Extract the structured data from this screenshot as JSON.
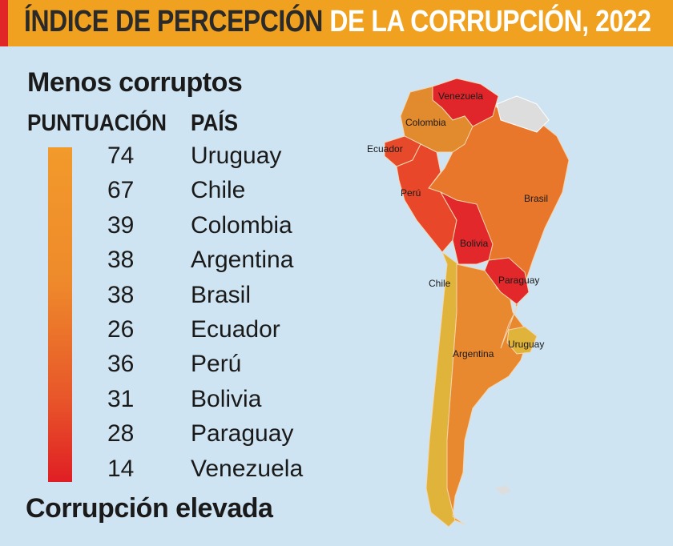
{
  "title": {
    "part1": "ÍNDICE DE PERCEPCIÓN",
    "part2": "DE LA CORRUPCIÓN, 2022"
  },
  "legend": {
    "top_label": "Menos corruptos",
    "bottom_label": "Corrupción elevada",
    "col_score": "PUNTUACIÓN",
    "col_country": "PAÍS"
  },
  "chart_data": {
    "type": "table",
    "columns": [
      "PUNTUACIÓN",
      "PAÍS"
    ],
    "rows": [
      {
        "score": "74",
        "country": "Uruguay"
      },
      {
        "score": "67",
        "country": "Chile"
      },
      {
        "score": "39",
        "country": "Colombia"
      },
      {
        "score": "38",
        "country": "Argentina"
      },
      {
        "score": "38",
        "country": "Brasil"
      },
      {
        "score": "26",
        "country": "Ecuador"
      },
      {
        "score": "36",
        "country": "Perú"
      },
      {
        "score": "31",
        "country": "Bolivia"
      },
      {
        "score": "28",
        "country": "Paraguay"
      },
      {
        "score": "14",
        "country": "Venezuela"
      }
    ],
    "map_labels": [
      "Venezuela",
      "Colombia",
      "Ecuador",
      "Perú",
      "Brasil",
      "Bolivia",
      "Chile",
      "Paraguay",
      "Uruguay",
      "Argentina"
    ]
  },
  "colors": {
    "title_bar": "#f0a11f",
    "background": "#cfe4f2",
    "high_score": "#f29a2b",
    "low_score": "#e01e24"
  }
}
